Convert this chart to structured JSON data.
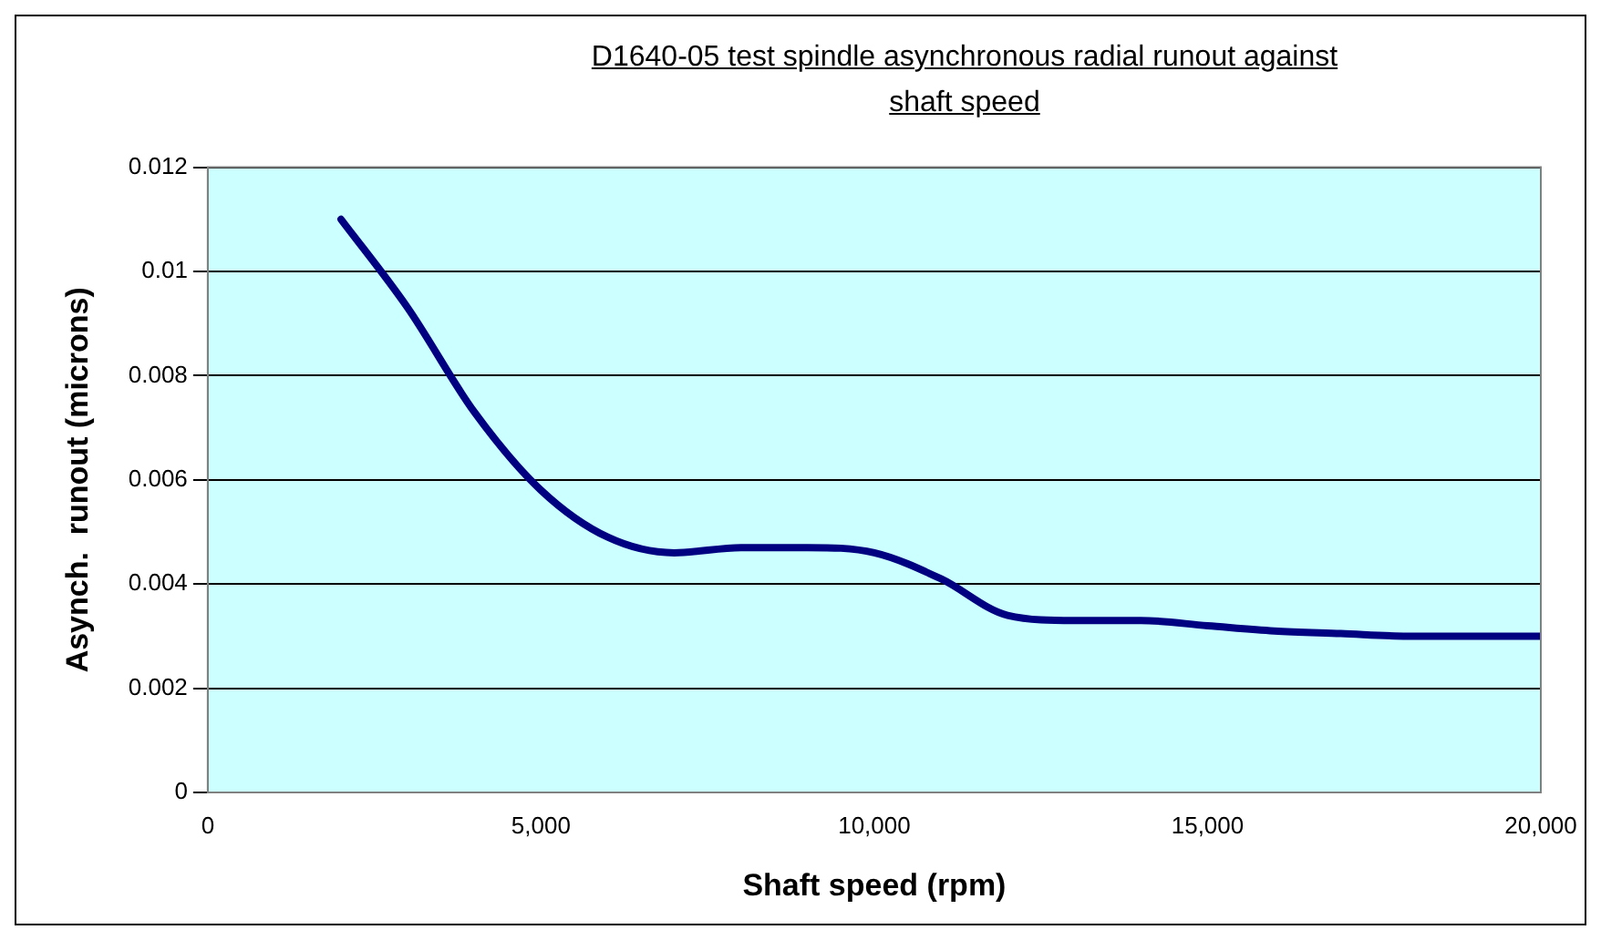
{
  "chart_data": {
    "type": "line",
    "title": "D1640-05  test spindle asynchronous radial runout against shaft speed",
    "xlabel": "Shaft speed (rpm)",
    "ylabel": "Asynch.  runout (microns)",
    "x": [
      2000,
      3000,
      4000,
      5000,
      6000,
      7000,
      8000,
      9000,
      10000,
      11000,
      12000,
      13000,
      14000,
      15000,
      16000,
      17000,
      18000,
      20000
    ],
    "series": [
      {
        "color": "#000080",
        "values": [
          0.011,
          0.0093,
          0.0073,
          0.0058,
          0.0049,
          0.0046,
          0.0047,
          0.0047,
          0.0046,
          0.0041,
          0.0034,
          0.0033,
          0.0033,
          0.0032,
          0.0031,
          0.00305,
          0.003,
          0.003
        ]
      }
    ],
    "xlim": [
      0,
      20000
    ],
    "xticks": [
      {
        "value": 0,
        "label": "0"
      },
      {
        "value": 5000,
        "label": "5,000"
      },
      {
        "value": 10000,
        "label": "10,000"
      },
      {
        "value": 15000,
        "label": "15,000"
      },
      {
        "value": 20000,
        "label": "20,000"
      }
    ],
    "ylim": [
      0,
      0.012
    ],
    "yticks": [
      0,
      0.002,
      0.004,
      0.006,
      0.008,
      0.01,
      0.012
    ],
    "grid": "y",
    "legend": false,
    "marker": "none",
    "line_style": "solid"
  }
}
